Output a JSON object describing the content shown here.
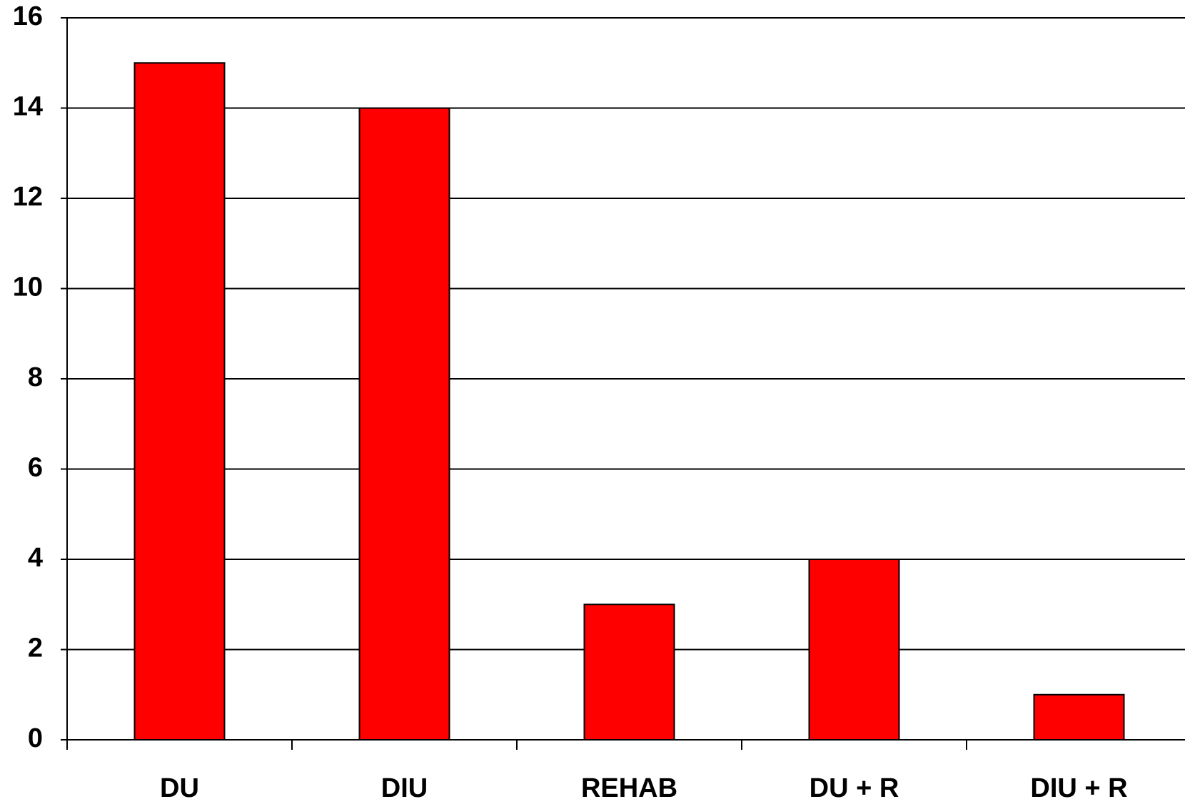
{
  "chart_data": {
    "type": "bar",
    "categories": [
      "DU",
      "DIU",
      "REHAB",
      "DU + R",
      "DIU + R"
    ],
    "values": [
      15,
      14,
      3,
      4,
      1
    ],
    "color": "#ff0000",
    "ylim": [
      0,
      16
    ],
    "yticks": [
      0,
      2,
      4,
      6,
      8,
      10,
      12,
      14,
      16
    ],
    "grid": true
  }
}
